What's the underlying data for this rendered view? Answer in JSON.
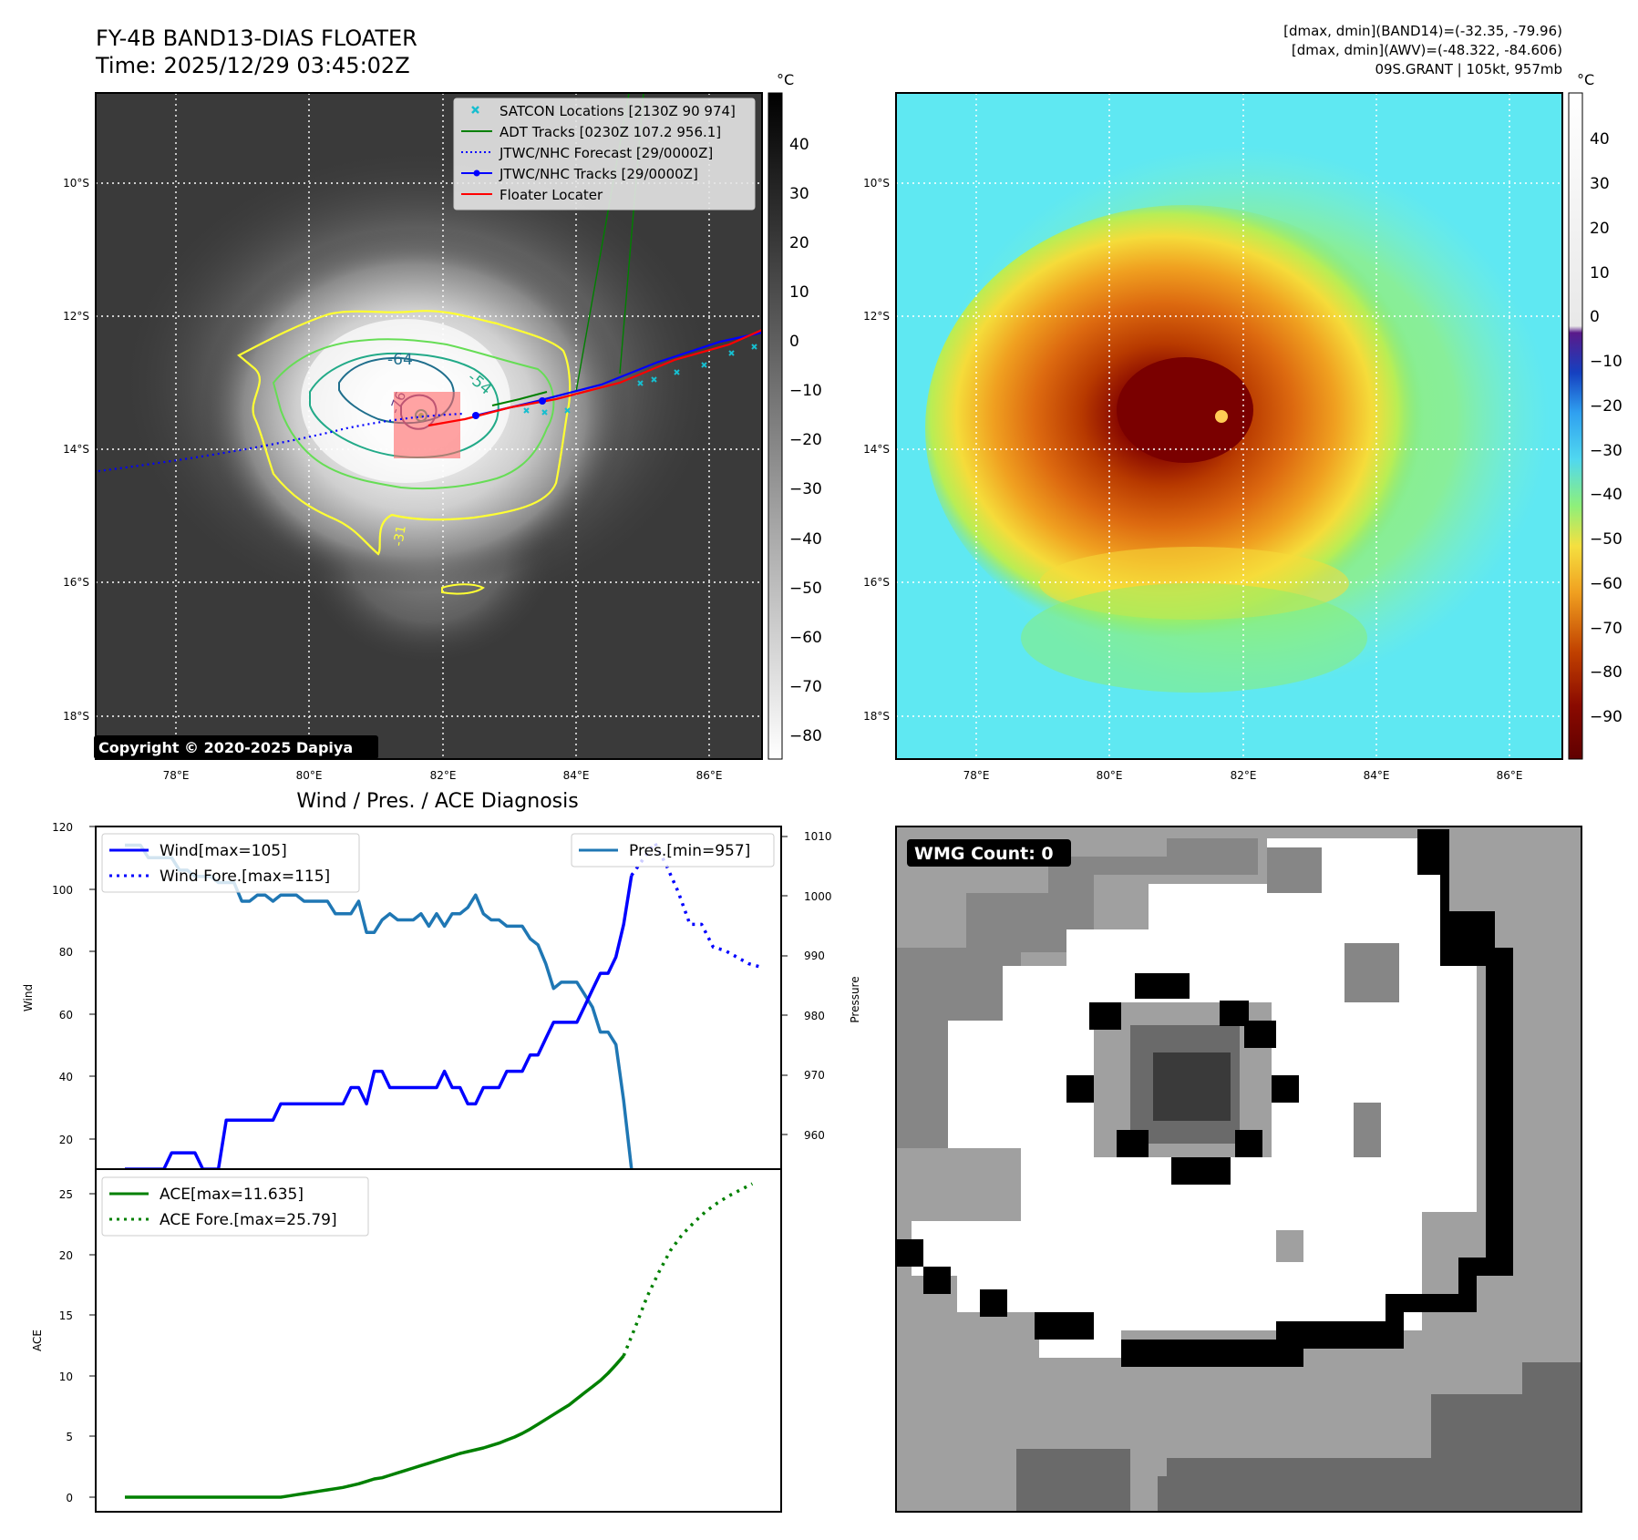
{
  "header": {
    "title_line1": "FY-4B BAND13-DIAS FLOATER",
    "title_line2": "Time: 2025/12/29 03:45:02Z",
    "right_line1": "[dmax, dmin](BAND14)=(-32.35, -79.96)",
    "right_line2": "[dmax, dmin](AWV)=(-48.322, -84.606)",
    "right_line3": "09S.GRANT | 105kt, 957mb"
  },
  "map": {
    "lat_labels": [
      "10°S",
      "12°S",
      "14°S",
      "16°S",
      "18°S"
    ],
    "lon_labels": [
      "78°E",
      "80°E",
      "82°E",
      "84°E",
      "86°E"
    ],
    "copyright": "Copyright © 2020-2025 Dapiya",
    "contour_labels": [
      "-64",
      "-54",
      "-76",
      "-31"
    ],
    "legend": [
      {
        "label": "SATCON Locations [2130Z 90 974]",
        "color": "#17becf",
        "marker": "x"
      },
      {
        "label": "ADT Tracks [0230Z 107.2 956.1]",
        "color": "#008000",
        "marker": "line"
      },
      {
        "label": "JTWC/NHC Forecast [29/0000Z]",
        "color": "#0000ff",
        "marker": "dotted"
      },
      {
        "label": "JTWC/NHC Tracks [29/0000Z]",
        "color": "#0000ff",
        "marker": "line-dot"
      },
      {
        "label": "Floater Locater",
        "color": "#ff0000",
        "marker": "line"
      }
    ]
  },
  "colorbar_gray": {
    "unit": "°C",
    "ticks": [
      "40",
      "30",
      "20",
      "10",
      "0",
      "−10",
      "−20",
      "−30",
      "−40",
      "−50",
      "−60",
      "−70",
      "−80"
    ]
  },
  "colorbar_color": {
    "unit": "°C",
    "ticks": [
      "40",
      "30",
      "20",
      "10",
      "0",
      "−10",
      "−20",
      "−30",
      "−40",
      "−50",
      "−60",
      "−70",
      "−80",
      "−90"
    ]
  },
  "wmg": {
    "label": "WMG Count: 0"
  },
  "chart_data": [
    {
      "type": "line",
      "title": "Wind / Pres. / ACE Diagnosis",
      "ylabel": "Wind",
      "ylim": [
        15,
        120
      ],
      "yticks": [
        "120",
        "100",
        "80",
        "60",
        "40",
        "20"
      ],
      "series": [
        {
          "name": "Wind[max=105]",
          "color": "#0000ff",
          "style": "solid",
          "values": [
            15,
            15,
            15,
            15,
            15,
            15,
            20,
            20,
            20,
            20,
            15,
            15,
            15,
            30,
            30,
            30,
            30,
            30,
            30,
            30,
            35,
            35,
            35,
            35,
            35,
            35,
            35,
            35,
            35,
            40,
            40,
            35,
            45,
            45,
            40,
            40,
            40,
            40,
            40,
            40,
            40,
            45,
            40,
            40,
            35,
            35,
            40,
            40,
            40,
            45,
            45,
            45,
            50,
            50,
            55,
            60,
            60,
            60,
            60,
            65,
            70,
            75,
            75,
            80,
            90,
            105
          ]
        },
        {
          "name": "Wind Fore.[max=115]",
          "color": "#0000ff",
          "style": "dotted",
          "values": [
            105,
            110,
            115,
            108,
            100,
            90,
            90,
            83,
            82,
            80,
            78,
            77
          ]
        }
      ],
      "secondary": {
        "ylabel": "Pressure",
        "ylim": [
          957,
          1012
        ],
        "yticks": [
          "1010",
          "1000",
          "990",
          "980",
          "970",
          "960"
        ],
        "series": [
          {
            "name": "Pres.[min=957]",
            "color": "#1f77b4",
            "style": "solid",
            "values": [
              1009,
              1009,
              1009,
              1007,
              1007,
              1007,
              1007,
              1005,
              1005,
              1004,
              1004,
              1004,
              1003,
              1003,
              1003,
              1000,
              1000,
              1001,
              1001,
              1000,
              1001,
              1001,
              1001,
              1000,
              1000,
              1000,
              1000,
              998,
              998,
              998,
              1000,
              995,
              995,
              997,
              998,
              997,
              997,
              997,
              998,
              996,
              998,
              996,
              998,
              998,
              999,
              1001,
              998,
              997,
              997,
              996,
              996,
              996,
              994,
              993,
              990,
              986,
              987,
              987,
              987,
              985,
              983,
              979,
              979,
              977,
              968,
              957
            ]
          }
        ]
      }
    },
    {
      "type": "line",
      "ylabel": "ACE",
      "ylim": [
        -1.2,
        27
      ],
      "yticks": [
        "25",
        "20",
        "15",
        "10",
        "5",
        "0"
      ],
      "series": [
        {
          "name": "ACE[max=11.635]",
          "color": "#008000",
          "style": "solid",
          "values": [
            0,
            0,
            0,
            0,
            0,
            0,
            0,
            0,
            0,
            0,
            0,
            0,
            0,
            0,
            0,
            0,
            0,
            0,
            0,
            0,
            0,
            0.1,
            0.2,
            0.3,
            0.4,
            0.5,
            0.6,
            0.7,
            0.8,
            0.95,
            1.1,
            1.3,
            1.5,
            1.6,
            1.8,
            2.0,
            2.2,
            2.4,
            2.6,
            2.8,
            3.0,
            3.2,
            3.4,
            3.6,
            3.75,
            3.9,
            4.05,
            4.25,
            4.45,
            4.7,
            4.95,
            5.25,
            5.6,
            6.0,
            6.4,
            6.8,
            7.2,
            7.6,
            8.1,
            8.6,
            9.1,
            9.6,
            10.2,
            10.9,
            11.635
          ]
        },
        {
          "name": "ACE Fore.[max=25.79]",
          "color": "#008000",
          "style": "dotted",
          "values": [
            11.635,
            14,
            16.5,
            18.5,
            20.3,
            21.6,
            22.6,
            23.5,
            24.2,
            24.8,
            25.3,
            25.79
          ]
        }
      ]
    }
  ]
}
